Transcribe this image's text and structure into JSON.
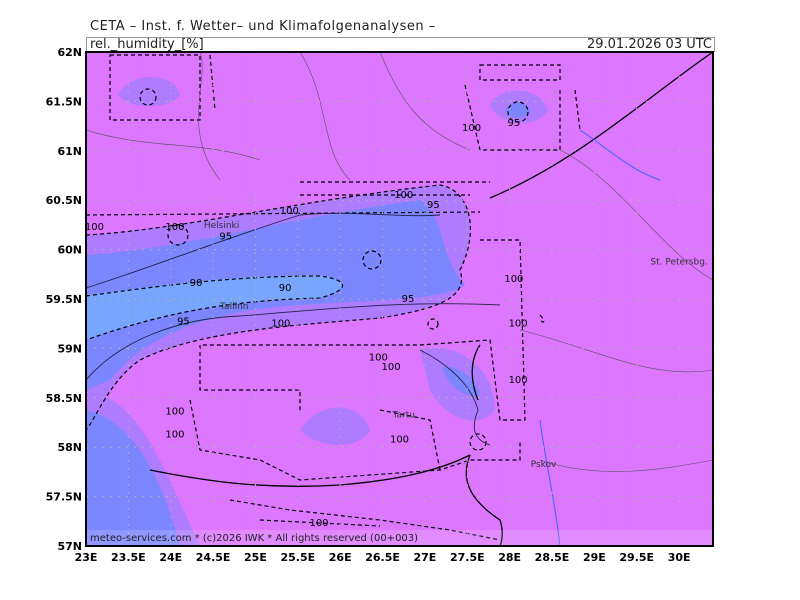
{
  "header": {
    "title": "CETA – Inst. f. Wetter– und Klimafolgenanalysen –",
    "parameter": "rel._humidity_[%]",
    "valid_time": "29.01.2026 03 UTC"
  },
  "footer": {
    "copyright": "meteo-services.com * (c)2026 IWK * All rights reserved (00+003)"
  },
  "map": {
    "extent": {
      "lon": [
        23,
        30.4
      ],
      "lat": [
        57,
        62
      ]
    },
    "x_ticks": [
      "23E",
      "23.5E",
      "24E",
      "24.5E",
      "25E",
      "25.5E",
      "26E",
      "26.5E",
      "27E",
      "27.5E",
      "28E",
      "28.5E",
      "29E",
      "29.5E",
      "30E"
    ],
    "y_ticks": [
      "57N",
      "57.5N",
      "58N",
      "58.5N",
      "59N",
      "59.5N",
      "60N",
      "60.5N",
      "61N",
      "61.5N",
      "62N"
    ],
    "colors": {
      "rh_100": "#dd77ff",
      "rh_95": "#b07cff",
      "rh_90": "#7c86ff",
      "rh_85": "#78a6ff",
      "grid": "#b0b0b0",
      "river": "#3c64ff"
    },
    "cities": [
      {
        "name": "Helsinki",
        "lon": 24.6,
        "lat": 60.22
      },
      {
        "name": "Tallinn",
        "lon": 24.75,
        "lat": 59.4
      },
      {
        "name": "Tartu",
        "lon": 26.75,
        "lat": 58.3
      },
      {
        "name": "Pskov",
        "lon": 28.4,
        "lat": 57.8
      },
      {
        "name": "St. Petersbg.",
        "lon": 30.0,
        "lat": 59.85
      }
    ],
    "contour_labels": [
      {
        "text": "100",
        "lon": 23.1,
        "lat": 60.2
      },
      {
        "text": "100",
        "lon": 24.05,
        "lat": 60.2
      },
      {
        "text": "100",
        "lon": 25.4,
        "lat": 60.36
      },
      {
        "text": "100",
        "lon": 26.75,
        "lat": 60.52
      },
      {
        "text": "95",
        "lon": 27.1,
        "lat": 60.42
      },
      {
        "text": "95",
        "lon": 24.65,
        "lat": 60.1
      },
      {
        "text": "90",
        "lon": 24.3,
        "lat": 59.63
      },
      {
        "text": "90",
        "lon": 25.35,
        "lat": 59.58
      },
      {
        "text": "95",
        "lon": 26.8,
        "lat": 59.47
      },
      {
        "text": "95",
        "lon": 24.15,
        "lat": 59.24
      },
      {
        "text": "100",
        "lon": 25.3,
        "lat": 59.22
      },
      {
        "text": "100",
        "lon": 27.55,
        "lat": 61.2
      },
      {
        "text": "95",
        "lon": 28.05,
        "lat": 61.25
      },
      {
        "text": "100",
        "lon": 28.05,
        "lat": 59.67
      },
      {
        "text": "100",
        "lon": 28.1,
        "lat": 59.22
      },
      {
        "text": "100",
        "lon": 26.45,
        "lat": 58.88
      },
      {
        "text": "100",
        "lon": 26.6,
        "lat": 58.78
      },
      {
        "text": "100",
        "lon": 28.1,
        "lat": 58.65
      },
      {
        "text": "100",
        "lon": 24.05,
        "lat": 58.33
      },
      {
        "text": "100",
        "lon": 24.05,
        "lat": 58.1
      },
      {
        "text": "100",
        "lon": 26.7,
        "lat": 58.05
      },
      {
        "text": "100",
        "lon": 25.75,
        "lat": 57.2
      }
    ]
  }
}
